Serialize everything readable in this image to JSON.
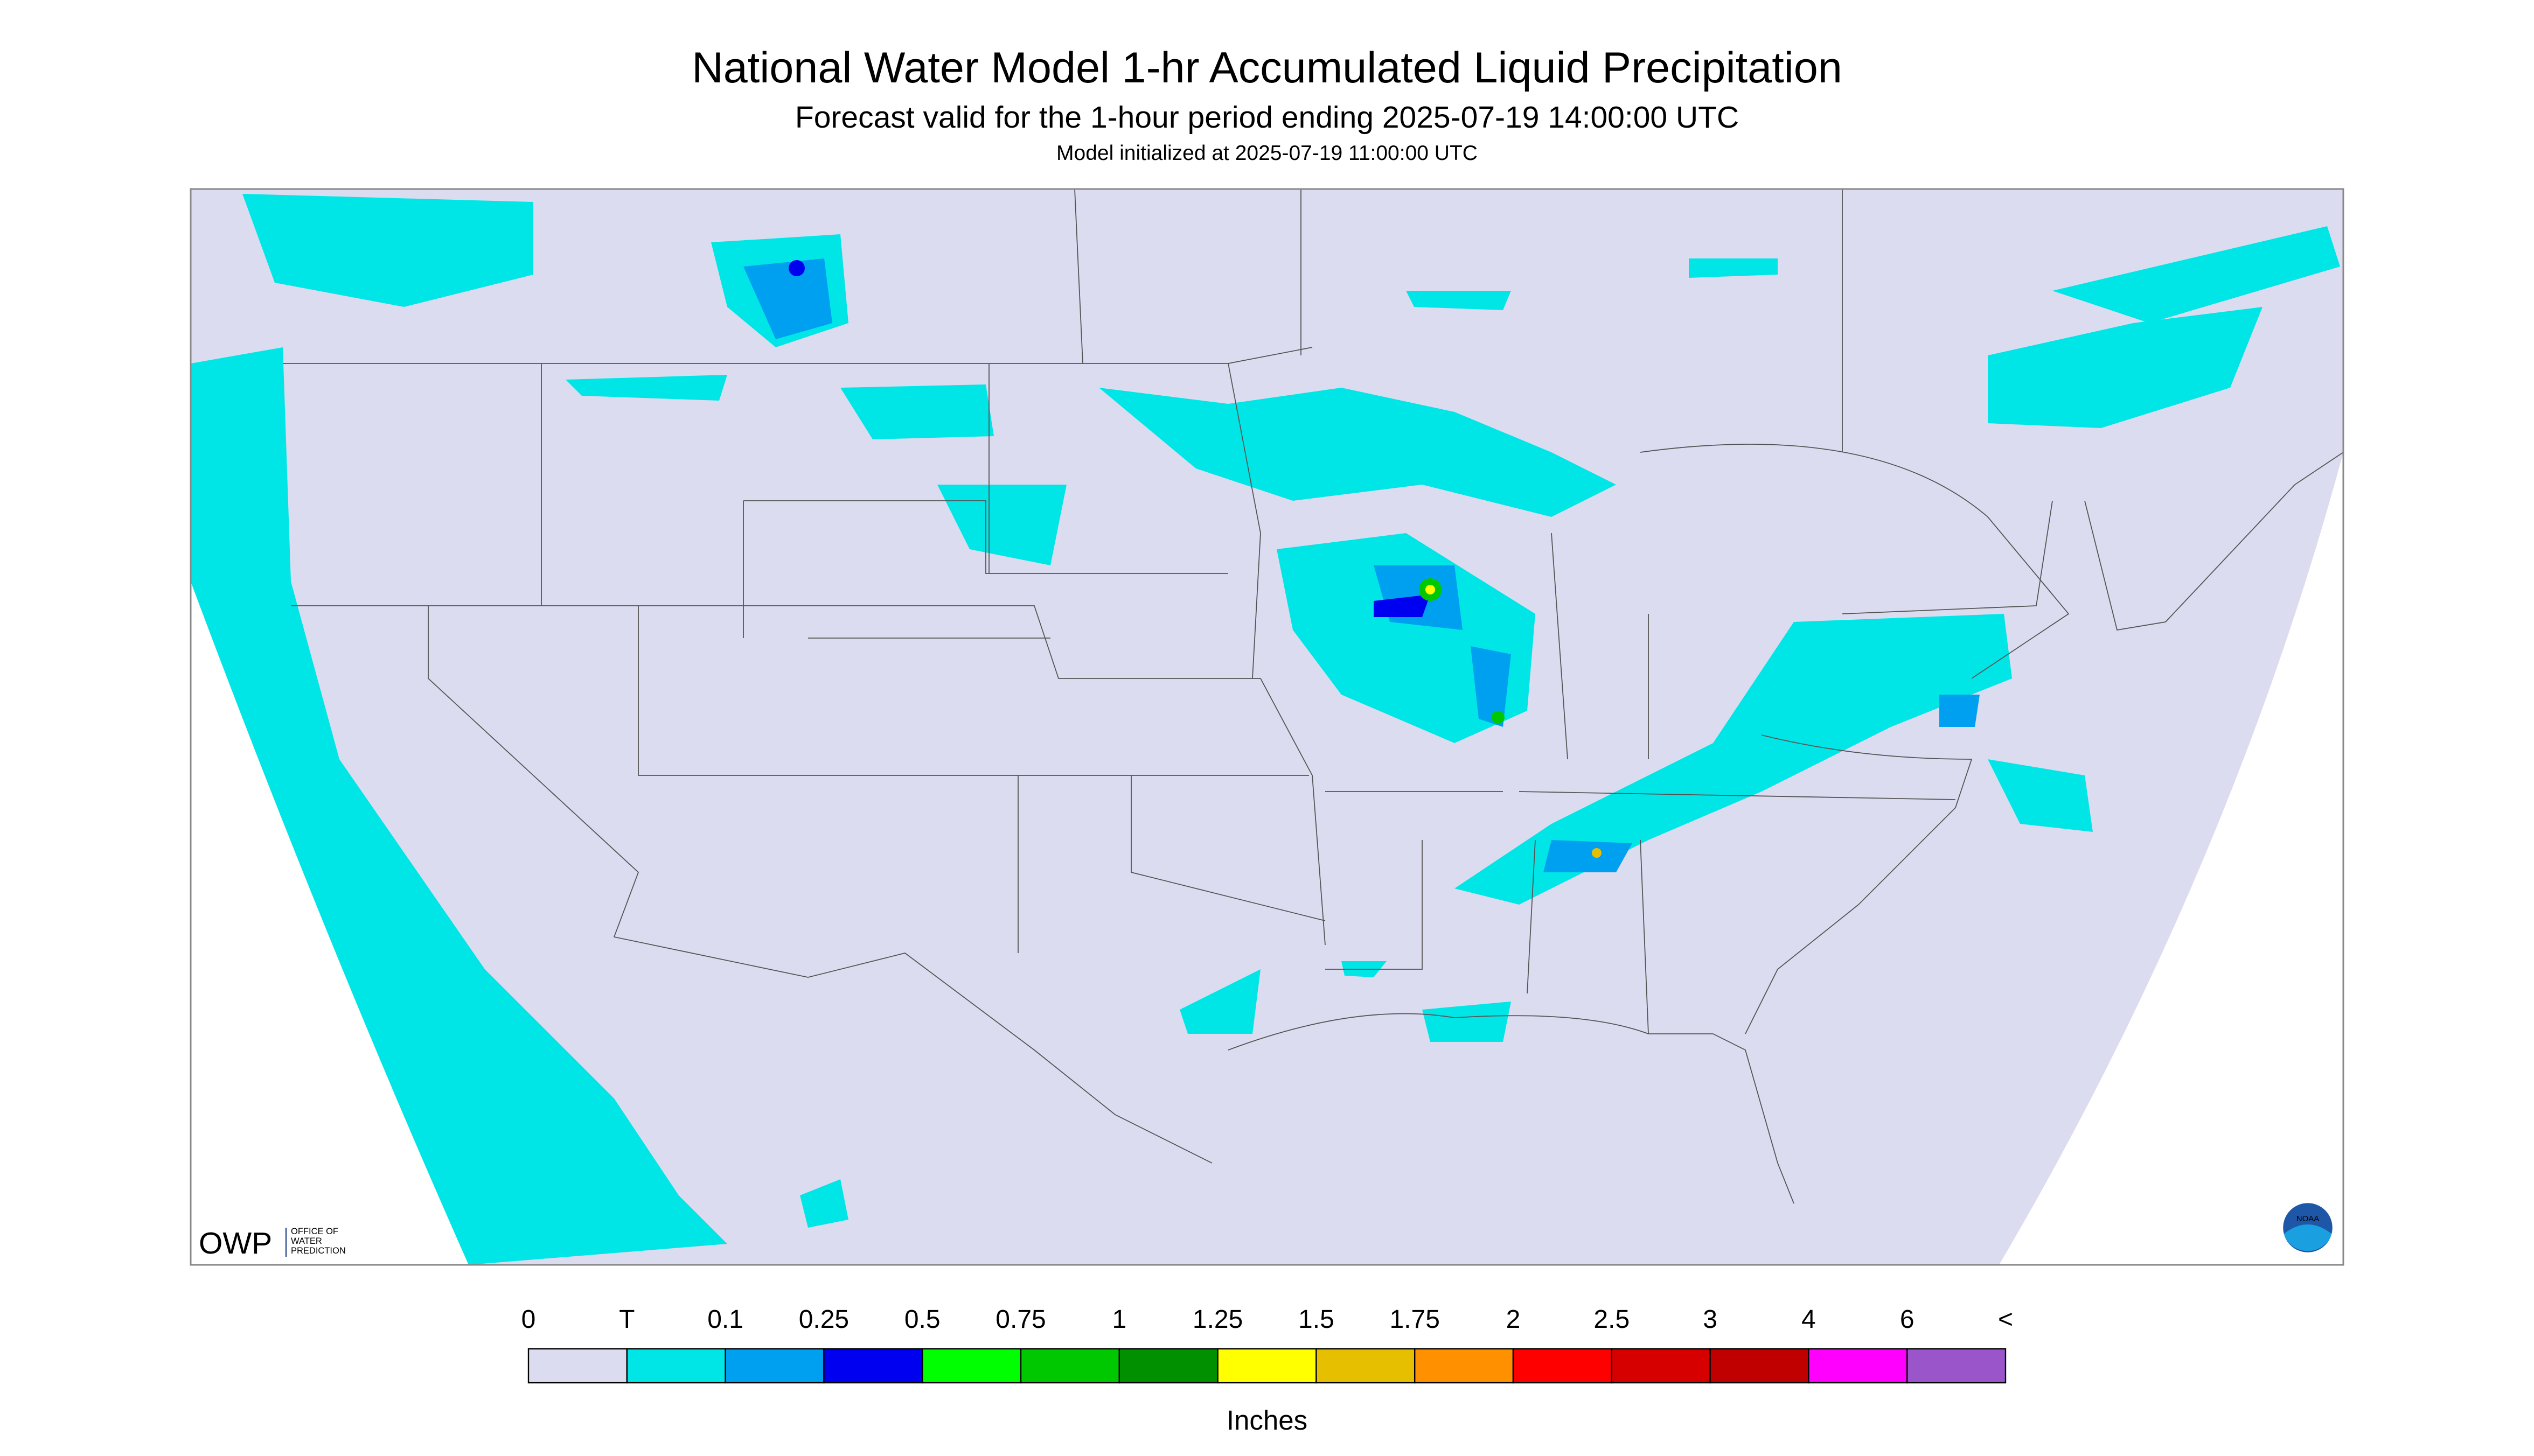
{
  "header": {
    "title": "National Water Model 1-hr Accumulated Liquid Precipitation",
    "subtitle": "Forecast valid for the 1-hour period ending 2025-07-19 14:00:00 UTC",
    "initialized": "Model initialized at 2025-07-19 11:00:00 UTC"
  },
  "logo": {
    "text": "OWP",
    "subtext": [
      "OFFICE OF",
      "WATER",
      "PREDICTION"
    ],
    "noaa": "NOAA"
  },
  "legend": {
    "labels": [
      "0",
      "T",
      "0.1",
      "0.25",
      "0.5",
      "0.75",
      "1",
      "1.25",
      "1.5",
      "1.75",
      "2",
      "2.5",
      "3",
      "4",
      "6",
      "<"
    ],
    "colors": [
      "#dcdcf0",
      "#00e6e6",
      "#00a0f0",
      "#0000f0",
      "#00ff00",
      "#00c800",
      "#009000",
      "#ffff00",
      "#e6c000",
      "#ff9000",
      "#ff0000",
      "#d60000",
      "#c00000",
      "#ff00ff",
      "#9955c9"
    ],
    "unit": "Inches"
  }
}
